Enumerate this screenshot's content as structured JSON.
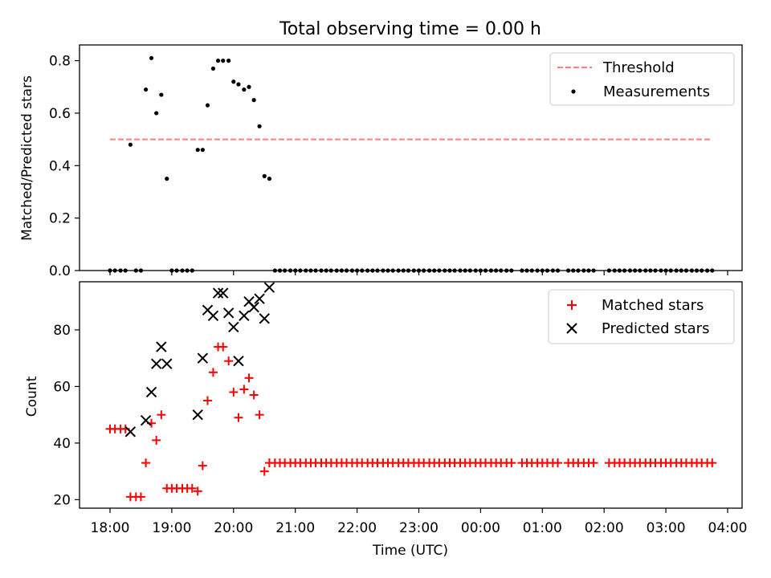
{
  "figure": {
    "title": "Total observing time = 0.00 h",
    "xlabel": "Time (UTC)",
    "x_ticks": [
      "18:00",
      "19:00",
      "20:00",
      "21:00",
      "22:00",
      "23:00",
      "00:00",
      "01:00",
      "02:00",
      "03:00",
      "04:00"
    ]
  },
  "colors": {
    "threshold": "#ff7f7f",
    "measurements": "#000000",
    "matched": "#ff0000",
    "predicted": "#000000"
  },
  "chart_data": [
    {
      "type": "scatter",
      "ylabel": "Matched/Predicted stars",
      "x_unit": "hours since 18:00 UTC",
      "ylim": [
        0,
        0.86
      ],
      "y_ticks": [
        "0.0",
        "0.2",
        "0.4",
        "0.6",
        "0.8"
      ],
      "y_tick_values": [
        0,
        0.2,
        0.4,
        0.6,
        0.8
      ],
      "legend_position": "top-right",
      "legend": [
        {
          "label": "Threshold",
          "marker": "dashed-line"
        },
        {
          "label": "Measurements",
          "marker": "dot"
        }
      ],
      "threshold": {
        "name": "Threshold",
        "y": 0.5,
        "x_range": [
          0.0,
          9.75
        ]
      },
      "series": [
        {
          "name": "Measurements",
          "points": [
            [
              0.0,
              0
            ],
            [
              0.08,
              0
            ],
            [
              0.17,
              0
            ],
            [
              0.25,
              0
            ],
            [
              0.33,
              0.48
            ],
            [
              0.42,
              0
            ],
            [
              0.5,
              0
            ],
            [
              0.58,
              0.69
            ],
            [
              0.67,
              0.81
            ],
            [
              0.75,
              0.6
            ],
            [
              0.83,
              0.67
            ],
            [
              0.92,
              0.35
            ],
            [
              1.0,
              0
            ],
            [
              1.08,
              0
            ],
            [
              1.17,
              0
            ],
            [
              1.25,
              0
            ],
            [
              1.33,
              0
            ],
            [
              1.42,
              0.46
            ],
            [
              1.5,
              0.46
            ],
            [
              1.58,
              0.63
            ],
            [
              1.67,
              0.77
            ],
            [
              1.75,
              0.8
            ],
            [
              1.83,
              0.8
            ],
            [
              1.92,
              0.8
            ],
            [
              2.0,
              0.72
            ],
            [
              2.08,
              0.71
            ],
            [
              2.17,
              0.69
            ],
            [
              2.25,
              0.7
            ],
            [
              2.33,
              0.65
            ],
            [
              2.42,
              0.55
            ],
            [
              2.5,
              0.36
            ],
            [
              2.58,
              0.35
            ],
            [
              2.67,
              0
            ],
            [
              2.75,
              0
            ],
            [
              2.83,
              0
            ],
            [
              2.92,
              0
            ],
            [
              3.0,
              0
            ],
            [
              3.08,
              0
            ],
            [
              3.17,
              0
            ],
            [
              3.25,
              0
            ],
            [
              3.33,
              0
            ],
            [
              3.42,
              0
            ],
            [
              3.5,
              0
            ],
            [
              3.58,
              0
            ],
            [
              3.67,
              0
            ],
            [
              3.75,
              0
            ],
            [
              3.83,
              0
            ],
            [
              3.92,
              0
            ],
            [
              4.0,
              0
            ],
            [
              4.08,
              0
            ],
            [
              4.17,
              0
            ],
            [
              4.25,
              0
            ],
            [
              4.33,
              0
            ],
            [
              4.42,
              0
            ],
            [
              4.5,
              0
            ],
            [
              4.58,
              0
            ],
            [
              4.67,
              0
            ],
            [
              4.75,
              0
            ],
            [
              4.83,
              0
            ],
            [
              4.92,
              0
            ],
            [
              5.0,
              0
            ],
            [
              5.08,
              0
            ],
            [
              5.17,
              0
            ],
            [
              5.25,
              0
            ],
            [
              5.33,
              0
            ],
            [
              5.42,
              0
            ],
            [
              5.5,
              0
            ],
            [
              5.58,
              0
            ],
            [
              5.67,
              0
            ],
            [
              5.75,
              0
            ],
            [
              5.83,
              0
            ],
            [
              5.92,
              0
            ],
            [
              6.0,
              0
            ],
            [
              6.08,
              0
            ],
            [
              6.17,
              0
            ],
            [
              6.25,
              0
            ],
            [
              6.33,
              0
            ],
            [
              6.42,
              0
            ],
            [
              6.5,
              0
            ],
            [
              6.67,
              0
            ],
            [
              6.75,
              0
            ],
            [
              6.83,
              0
            ],
            [
              6.92,
              0
            ],
            [
              7.0,
              0
            ],
            [
              7.08,
              0
            ],
            [
              7.17,
              0
            ],
            [
              7.25,
              0
            ],
            [
              7.42,
              0
            ],
            [
              7.5,
              0
            ],
            [
              7.58,
              0
            ],
            [
              7.67,
              0
            ],
            [
              7.75,
              0
            ],
            [
              7.83,
              0
            ],
            [
              8.08,
              0
            ],
            [
              8.17,
              0
            ],
            [
              8.25,
              0
            ],
            [
              8.33,
              0
            ],
            [
              8.42,
              0
            ],
            [
              8.5,
              0
            ],
            [
              8.58,
              0
            ],
            [
              8.67,
              0
            ],
            [
              8.75,
              0
            ],
            [
              8.83,
              0
            ],
            [
              8.92,
              0
            ],
            [
              9.0,
              0
            ],
            [
              9.08,
              0
            ],
            [
              9.17,
              0
            ],
            [
              9.25,
              0
            ],
            [
              9.33,
              0
            ],
            [
              9.42,
              0
            ],
            [
              9.5,
              0
            ],
            [
              9.58,
              0
            ],
            [
              9.67,
              0
            ],
            [
              9.75,
              0
            ]
          ]
        }
      ]
    },
    {
      "type": "scatter",
      "ylabel": "Count",
      "x_unit": "hours since 18:00 UTC",
      "ylim": [
        17,
        97
      ],
      "y_ticks": [
        "20",
        "40",
        "60",
        "80"
      ],
      "y_tick_values": [
        20,
        40,
        60,
        80
      ],
      "legend_position": "top-right",
      "legend": [
        {
          "label": "Matched stars",
          "marker": "plus"
        },
        {
          "label": "Predicted stars",
          "marker": "x"
        }
      ],
      "series": [
        {
          "name": "Matched stars",
          "marker": "plus",
          "points": [
            [
              0.0,
              45
            ],
            [
              0.08,
              45
            ],
            [
              0.17,
              45
            ],
            [
              0.25,
              45
            ],
            [
              0.33,
              21
            ],
            [
              0.42,
              21
            ],
            [
              0.5,
              21
            ],
            [
              0.58,
              33
            ],
            [
              0.67,
              47
            ],
            [
              0.75,
              41
            ],
            [
              0.83,
              50
            ],
            [
              0.92,
              24
            ],
            [
              1.0,
              24
            ],
            [
              1.08,
              24
            ],
            [
              1.17,
              24
            ],
            [
              1.25,
              24
            ],
            [
              1.33,
              24
            ],
            [
              1.42,
              23
            ],
            [
              1.5,
              32
            ],
            [
              1.58,
              55
            ],
            [
              1.67,
              65
            ],
            [
              1.75,
              74
            ],
            [
              1.83,
              74
            ],
            [
              1.92,
              69
            ],
            [
              2.0,
              58
            ],
            [
              2.08,
              49
            ],
            [
              2.17,
              59
            ],
            [
              2.25,
              63
            ],
            [
              2.33,
              57
            ],
            [
              2.42,
              50
            ],
            [
              2.5,
              30
            ],
            [
              2.58,
              33
            ],
            [
              2.67,
              33
            ],
            [
              2.75,
              33
            ],
            [
              2.83,
              33
            ],
            [
              2.92,
              33
            ],
            [
              3.0,
              33
            ],
            [
              3.08,
              33
            ],
            [
              3.17,
              33
            ],
            [
              3.25,
              33
            ],
            [
              3.33,
              33
            ],
            [
              3.42,
              33
            ],
            [
              3.5,
              33
            ],
            [
              3.58,
              33
            ],
            [
              3.67,
              33
            ],
            [
              3.75,
              33
            ],
            [
              3.83,
              33
            ],
            [
              3.92,
              33
            ],
            [
              4.0,
              33
            ],
            [
              4.08,
              33
            ],
            [
              4.17,
              33
            ],
            [
              4.25,
              33
            ],
            [
              4.33,
              33
            ],
            [
              4.42,
              33
            ],
            [
              4.5,
              33
            ],
            [
              4.58,
              33
            ],
            [
              4.67,
              33
            ],
            [
              4.75,
              33
            ],
            [
              4.83,
              33
            ],
            [
              4.92,
              33
            ],
            [
              5.0,
              33
            ],
            [
              5.08,
              33
            ],
            [
              5.17,
              33
            ],
            [
              5.25,
              33
            ],
            [
              5.33,
              33
            ],
            [
              5.42,
              33
            ],
            [
              5.5,
              33
            ],
            [
              5.58,
              33
            ],
            [
              5.67,
              33
            ],
            [
              5.75,
              33
            ],
            [
              5.83,
              33
            ],
            [
              5.92,
              33
            ],
            [
              6.0,
              33
            ],
            [
              6.08,
              33
            ],
            [
              6.17,
              33
            ],
            [
              6.25,
              33
            ],
            [
              6.33,
              33
            ],
            [
              6.42,
              33
            ],
            [
              6.5,
              33
            ],
            [
              6.67,
              33
            ],
            [
              6.75,
              33
            ],
            [
              6.83,
              33
            ],
            [
              6.92,
              33
            ],
            [
              7.0,
              33
            ],
            [
              7.08,
              33
            ],
            [
              7.17,
              33
            ],
            [
              7.25,
              33
            ],
            [
              7.42,
              33
            ],
            [
              7.5,
              33
            ],
            [
              7.58,
              33
            ],
            [
              7.67,
              33
            ],
            [
              7.75,
              33
            ],
            [
              7.83,
              33
            ],
            [
              8.08,
              33
            ],
            [
              8.17,
              33
            ],
            [
              8.25,
              33
            ],
            [
              8.33,
              33
            ],
            [
              8.42,
              33
            ],
            [
              8.5,
              33
            ],
            [
              8.58,
              33
            ],
            [
              8.67,
              33
            ],
            [
              8.75,
              33
            ],
            [
              8.83,
              33
            ],
            [
              8.92,
              33
            ],
            [
              9.0,
              33
            ],
            [
              9.08,
              33
            ],
            [
              9.17,
              33
            ],
            [
              9.25,
              33
            ],
            [
              9.33,
              33
            ],
            [
              9.42,
              33
            ],
            [
              9.5,
              33
            ],
            [
              9.58,
              33
            ],
            [
              9.67,
              33
            ],
            [
              9.75,
              33
            ]
          ]
        },
        {
          "name": "Predicted stars",
          "marker": "x",
          "points": [
            [
              0.33,
              44
            ],
            [
              0.58,
              48
            ],
            [
              0.67,
              58
            ],
            [
              0.75,
              68
            ],
            [
              0.83,
              74
            ],
            [
              0.92,
              68
            ],
            [
              1.42,
              50
            ],
            [
              1.5,
              70
            ],
            [
              1.58,
              87
            ],
            [
              1.67,
              85
            ],
            [
              1.75,
              93
            ],
            [
              1.83,
              93
            ],
            [
              1.92,
              86
            ],
            [
              2.0,
              81
            ],
            [
              2.08,
              69
            ],
            [
              2.17,
              85
            ],
            [
              2.25,
              90
            ],
            [
              2.33,
              88
            ],
            [
              2.42,
              91
            ],
            [
              2.5,
              84
            ],
            [
              2.58,
              95
            ]
          ]
        }
      ]
    }
  ]
}
